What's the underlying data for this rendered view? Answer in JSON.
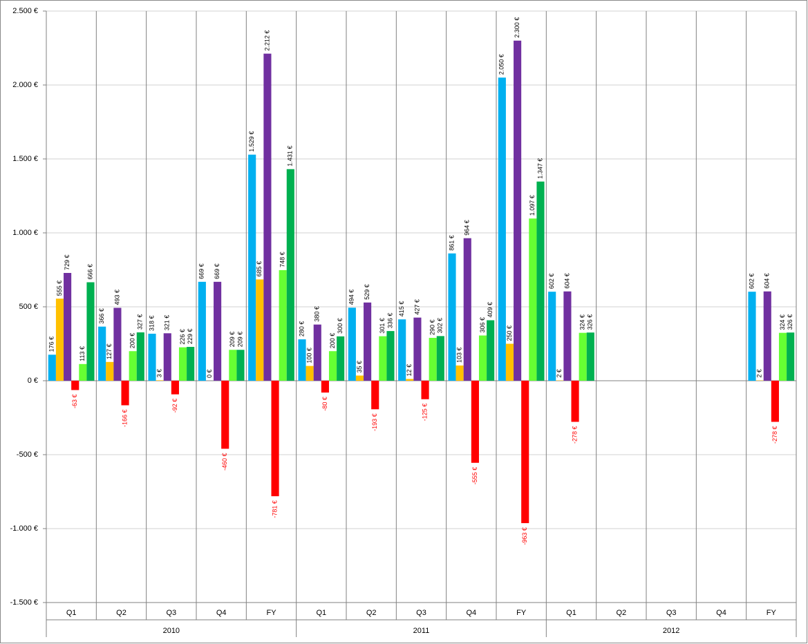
{
  "chart_data": {
    "type": "bar",
    "categories": [
      "Q1",
      "Q2",
      "Q3",
      "Q4",
      "FY",
      "Q1",
      "Q2",
      "Q3",
      "Q4",
      "FY",
      "Q1",
      "Q2",
      "Q3",
      "Q4",
      "FY"
    ],
    "category_groups": [
      "2010",
      "2011",
      "2012"
    ],
    "ylim": [
      -1500,
      2500
    ],
    "yticks": [
      {
        "value": -1500,
        "label": "-1.500 €"
      },
      {
        "value": -1000,
        "label": "-1.000 €"
      },
      {
        "value": -500,
        "label": "-500 €"
      },
      {
        "value": 0,
        "label": "0 €"
      },
      {
        "value": 500,
        "label": "500 €"
      },
      {
        "value": 1000,
        "label": "1.000 €"
      },
      {
        "value": 1500,
        "label": "1.500 €"
      },
      {
        "value": 2000,
        "label": "2.000 €"
      },
      {
        "value": 2500,
        "label": "2.500 €"
      }
    ],
    "grid": true,
    "series": [
      {
        "color": "#00b0f0",
        "label_color": "#000000",
        "values": [
          176,
          366,
          318,
          669,
          1529,
          280,
          494,
          415,
          861,
          2050,
          602,
          null,
          null,
          null,
          602
        ],
        "value_labels": [
          "176 €",
          "366 €",
          "318 €",
          "669 €",
          "1.529 €",
          "280 €",
          "494 €",
          "415 €",
          "861 €",
          "2.050 €",
          "602 €",
          null,
          null,
          null,
          "602 €"
        ]
      },
      {
        "color": "#ffc000",
        "label_color": "#000000",
        "values": [
          555,
          127,
          3,
          0,
          685,
          100,
          35,
          12,
          103,
          250,
          2,
          null,
          null,
          null,
          2
        ],
        "value_labels": [
          "555 €",
          "127 €",
          "3 €",
          "0 €",
          "685 €",
          "100 €",
          "35 €",
          "12 €",
          "103 €",
          "250 €",
          "2 €",
          null,
          null,
          null,
          "2 €"
        ]
      },
      {
        "color": "#7030a0",
        "label_color": "#000000",
        "values": [
          729,
          493,
          321,
          669,
          2212,
          380,
          529,
          427,
          964,
          2300,
          604,
          null,
          null,
          null,
          604
        ],
        "value_labels": [
          "729 €",
          "493 €",
          "321 €",
          "669 €",
          "2.212 €",
          "380 €",
          "529 €",
          "427 €",
          "964 €",
          "2.300 €",
          "604 €",
          null,
          null,
          null,
          "604 €"
        ]
      },
      {
        "color": "#ff0000",
        "label_color": "#ff0000",
        "values": [
          -63,
          -166,
          -92,
          -460,
          -781,
          -80,
          -193,
          -125,
          -555,
          -963,
          -278,
          null,
          null,
          null,
          -278
        ],
        "value_labels": [
          "-63 €",
          "-166 €",
          "-92 €",
          "-460 €",
          "-781 €",
          "-80 €",
          "-193 €",
          "-125 €",
          "-555 €",
          "-963 €",
          "-278 €",
          null,
          null,
          null,
          "-278 €"
        ]
      },
      {
        "color": "#66ff33",
        "label_color": "#000000",
        "values": [
          113,
          200,
          226,
          209,
          748,
          200,
          301,
          290,
          306,
          1097,
          324,
          null,
          null,
          null,
          324
        ],
        "value_labels": [
          "113 €",
          "200 €",
          "226 €",
          "209 €",
          "748 €",
          "200 €",
          "301 €",
          "290 €",
          "306 €",
          "1.097 €",
          "324 €",
          null,
          null,
          null,
          "324 €"
        ]
      },
      {
        "color": "#00b050",
        "label_color": "#000000",
        "values": [
          666,
          327,
          229,
          209,
          1431,
          300,
          336,
          302,
          409,
          1347,
          326,
          null,
          null,
          null,
          326
        ],
        "value_labels": [
          "666 €",
          "327 €",
          "229 €",
          "209 €",
          "1.431 €",
          "300 €",
          "336 €",
          "302 €",
          "409 €",
          "1.347 €",
          "326 €",
          null,
          null,
          null,
          "326 €"
        ]
      }
    ]
  }
}
